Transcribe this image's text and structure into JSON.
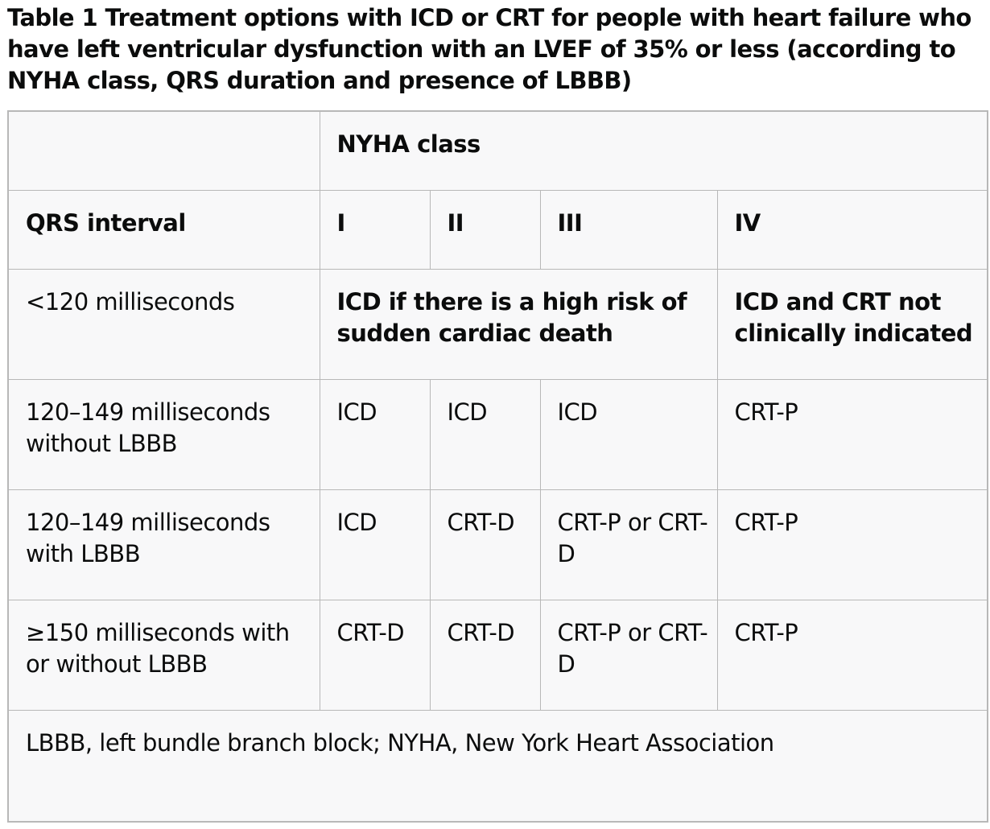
{
  "caption": "Table 1 Treatment options with ICD or CRT for people with heart failure who have left ventricular dysfunction with an LVEF of 35% or less (according to NYHA class, QRS duration and presence of LBBB)",
  "table": {
    "nyha_header": "NYHA class",
    "qrs_header": "QRS interval",
    "classes": [
      "I",
      "II",
      "III",
      "IV"
    ],
    "row_lt120": {
      "label": "<120 milliseconds",
      "classes_i_to_iii": "ICD if there is a high risk of sudden cardiac death",
      "class_iv": "ICD and CRT not clinically indicated"
    },
    "rows": [
      {
        "label": "120–149 milliseconds without LBBB",
        "cells": [
          "ICD",
          "ICD",
          "ICD",
          "CRT-P"
        ]
      },
      {
        "label": "120–149 milliseconds with LBBB",
        "cells": [
          "ICD",
          "CRT-D",
          "CRT-P or CRT-D",
          "CRT-P"
        ]
      },
      {
        "label": "≥150 milliseconds with or without LBBB",
        "cells": [
          "CRT-D",
          "CRT-D",
          "CRT-P or CRT-D",
          "CRT-P"
        ]
      }
    ],
    "footnote": "LBBB, left bundle branch block; NYHA, New York Heart Association"
  }
}
